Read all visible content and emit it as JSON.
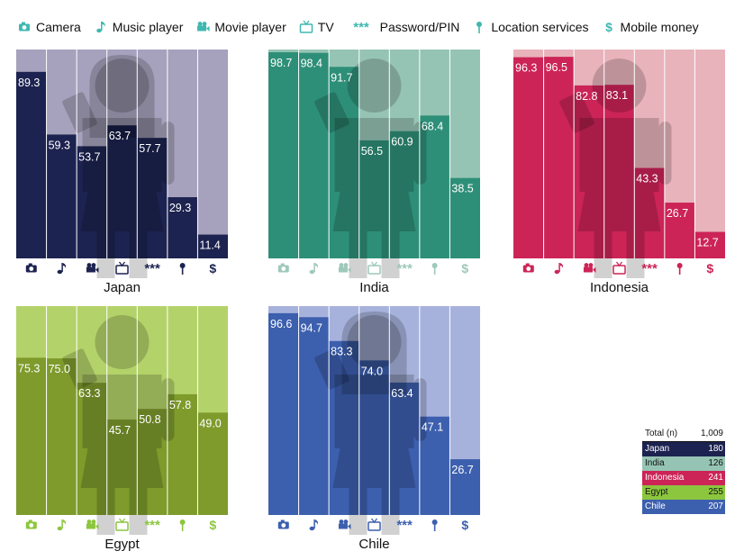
{
  "legend": {
    "items": [
      {
        "label": "Camera",
        "icon": "camera-icon"
      },
      {
        "label": "Music player",
        "icon": "music-note-icon"
      },
      {
        "label": "Movie player",
        "icon": "movie-camera-icon"
      },
      {
        "label": "TV",
        "icon": "tv-icon"
      },
      {
        "label": "Password/PIN",
        "icon": "password-icon",
        "glyph": "***"
      },
      {
        "label": "Location services",
        "icon": "location-pin-icon"
      },
      {
        "label": "Mobile money",
        "icon": "dollar-icon",
        "glyph": "$"
      }
    ],
    "color": "#3fb8b0"
  },
  "chart_data": [
    {
      "type": "bar",
      "title": "Japan",
      "categories": [
        "Camera",
        "Music player",
        "Movie player",
        "TV",
        "Password/PIN",
        "Location services",
        "Mobile money"
      ],
      "values": [
        89.3,
        59.3,
        53.7,
        63.7,
        57.7,
        29.3,
        11.4
      ],
      "ylim": [
        0,
        100
      ],
      "bar_color": "#1d2350",
      "bg_color": "#a6a1bc",
      "icon_color": "#1d2350"
    },
    {
      "type": "bar",
      "title": "India",
      "categories": [
        "Camera",
        "Music player",
        "Movie player",
        "TV",
        "Password/PIN",
        "Location services",
        "Mobile money"
      ],
      "values": [
        98.7,
        98.4,
        91.7,
        56.5,
        60.9,
        68.4,
        38.5
      ],
      "ylim": [
        0,
        100
      ],
      "bar_color": "#2e8f78",
      "bg_color": "#96c4b4",
      "icon_color": "#9ec9ba"
    },
    {
      "type": "bar",
      "title": "Indonesia",
      "categories": [
        "Camera",
        "Music player",
        "Movie player",
        "TV",
        "Password/PIN",
        "Location services",
        "Mobile money"
      ],
      "values": [
        96.3,
        96.5,
        82.8,
        83.1,
        43.3,
        26.7,
        12.7
      ],
      "ylim": [
        0,
        100
      ],
      "bar_color": "#cc2457",
      "bg_color": "#e8b3bb",
      "icon_color": "#cc2457"
    },
    {
      "type": "bar",
      "title": "Egypt",
      "categories": [
        "Camera",
        "Music player",
        "Movie player",
        "TV",
        "Password/PIN",
        "Location services",
        "Mobile money"
      ],
      "values": [
        75.3,
        75.0,
        63.3,
        45.7,
        50.8,
        57.8,
        49.0
      ],
      "ylim": [
        0,
        100
      ],
      "bar_color": "#7e9b2c",
      "bg_color": "#b4d26a",
      "icon_color": "#8cc63e"
    },
    {
      "type": "bar",
      "title": "Chile",
      "categories": [
        "Camera",
        "Music player",
        "Movie player",
        "TV",
        "Password/PIN",
        "Location services",
        "Mobile money"
      ],
      "values": [
        96.6,
        94.7,
        83.3,
        74.0,
        63.4,
        47.1,
        26.7
      ],
      "ylim": [
        0,
        100
      ],
      "bar_color": "#3c5fae",
      "bg_color": "#a7b2dc",
      "icon_color": "#3c5fae"
    }
  ],
  "totals": {
    "header_label": "Total (n)",
    "header_value": "1,009",
    "rows": [
      {
        "label": "Japan",
        "value": "180",
        "color": "#1d2350"
      },
      {
        "label": "India",
        "value": "126",
        "color": "#96c4b4"
      },
      {
        "label": "Indonesia",
        "value": "241",
        "color": "#cc2457"
      },
      {
        "label": "Egypt",
        "value": "255",
        "color": "#8cc63e"
      },
      {
        "label": "Chile",
        "value": "207",
        "color": "#3c5fae"
      }
    ]
  }
}
